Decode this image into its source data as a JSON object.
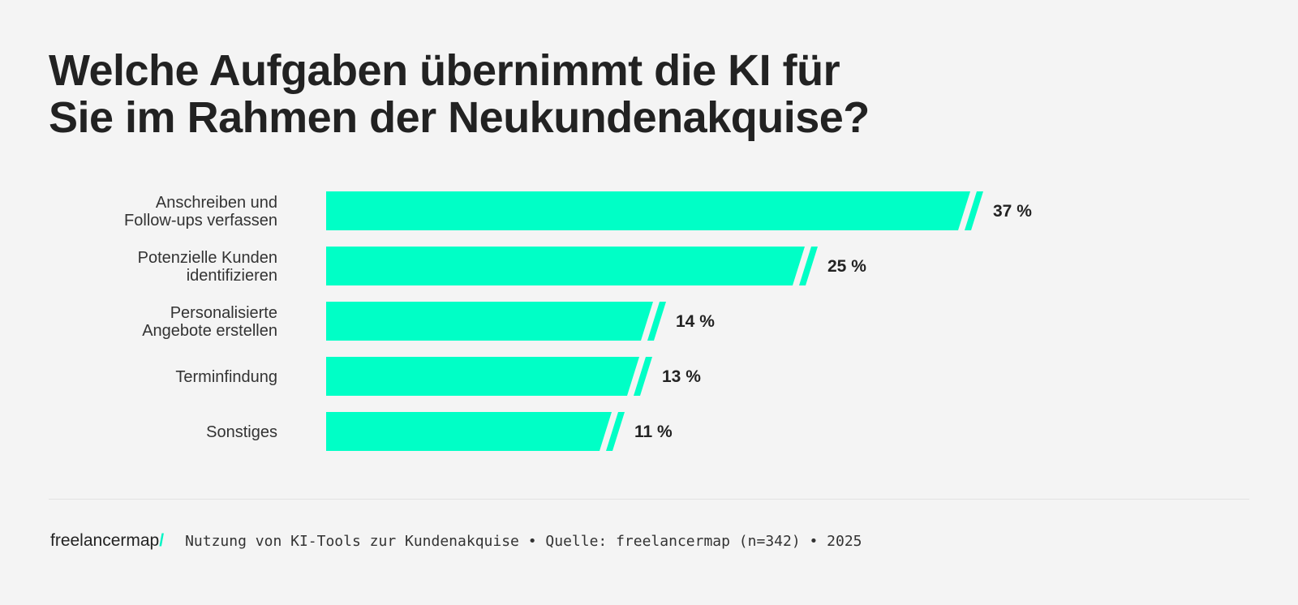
{
  "chart_data": {
    "type": "bar",
    "orientation": "horizontal",
    "title": [
      "Welche Aufgaben übernimmt die KI für",
      "Sie im Rahmen der Neukundenakquise?"
    ],
    "categories": [
      [
        "Anschreiben und",
        "Follow-ups verfassen"
      ],
      [
        "Potenzielle Kunden",
        "identifizieren"
      ],
      [
        "Personalisierte",
        "Angebote erstellen"
      ],
      [
        "Terminfindung"
      ],
      [
        "Sonstiges"
      ]
    ],
    "values": [
      37,
      25,
      14,
      13,
      11
    ],
    "value_labels": [
      "37 %",
      "25 %",
      "14 %",
      "13 %",
      "11 %"
    ],
    "unit": "%",
    "grid": false,
    "bar_color": "#00ffc6"
  },
  "footer": {
    "logo_text": "freelancermap",
    "logo_slash": "/",
    "logo_accent": "#00f5c4",
    "source": "Nutzung von KI-Tools zur Kundenakquise • Quelle: freelancermap (n=342) • 2025"
  }
}
